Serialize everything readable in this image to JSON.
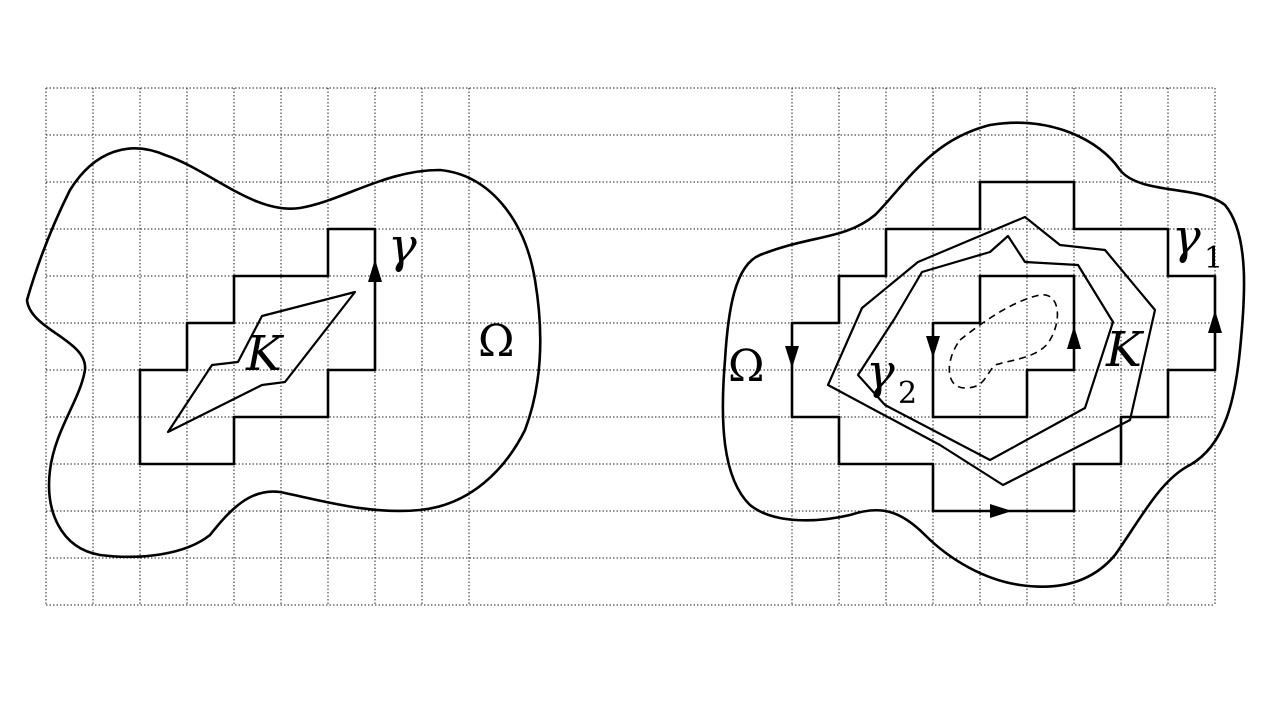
{
  "left_figure": {
    "domain_label": "Ω",
    "compact_label": "K",
    "contour_label": "γ"
  },
  "right_figure": {
    "domain_label": "Ω",
    "compact_label": "K",
    "contour1_label": "γ",
    "contour1_subscript": "1",
    "contour2_label": "γ",
    "contour2_subscript": "2"
  }
}
